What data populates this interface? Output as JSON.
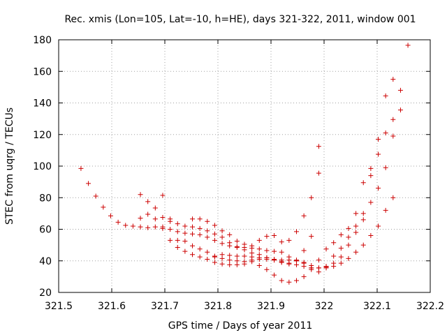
{
  "chart_data": {
    "type": "scatter",
    "title": "Rec. xmis (Lon=105, Lat=-10, h=HE), days 321-322, 2011, window 001",
    "xlabel": "GPS time / Days of year 2011",
    "ylabel": "STEC from uqrg / TECUs",
    "xlim": [
      321.5,
      322.2
    ],
    "ylim": [
      20,
      180
    ],
    "xticks": [
      "321.5",
      "321.6",
      "321.7",
      "321.8",
      "321.9",
      "322",
      "322.1",
      "322.2"
    ],
    "yticks": [
      "20",
      "40",
      "60",
      "80",
      "100",
      "120",
      "140",
      "160",
      "180"
    ],
    "grid": true,
    "marker": "plus",
    "color": "#cc0000",
    "series": [
      {
        "x": [
          321.542,
          321.556,
          321.57,
          321.584,
          321.598,
          321.612,
          321.626,
          321.64,
          321.654,
          321.668,
          321.682,
          321.696,
          321.71,
          321.724,
          321.738,
          321.752,
          321.766,
          321.78,
          321.794,
          321.808,
          321.822,
          321.836,
          321.85,
          321.864,
          321.878,
          321.892,
          321.906,
          321.92,
          321.934,
          321.948,
          321.962,
          321.976,
          321.99,
          322.004,
          322.018,
          322.032,
          322.046,
          322.06,
          322.074,
          322.088,
          322.102,
          322.116,
          322.13,
          322.144
        ],
        "y": [
          98.5,
          89,
          81,
          74,
          68.5,
          64.5,
          62.5,
          62,
          61.5,
          61,
          61.5,
          60.5,
          60,
          58.5,
          57.5,
          57,
          56.5,
          55,
          53,
          51,
          49.5,
          48.5,
          48.5,
          48,
          47.5,
          46.5,
          46,
          45.5,
          42.5,
          40.5,
          38.5,
          35.5,
          33,
          36.5,
          43,
          48,
          55,
          62,
          70,
          77,
          86,
          99,
          119,
          148
        ]
      },
      {
        "x": [
          321.654,
          321.668,
          321.682,
          321.696,
          321.71,
          321.724,
          321.738,
          321.752,
          321.766,
          321.78,
          321.794,
          321.808,
          321.822,
          321.836,
          321.85,
          321.864,
          321.878,
          321.892,
          321.906,
          321.92,
          321.934,
          321.948,
          321.962,
          321.976,
          321.99,
          322.004,
          322.018,
          322.032,
          322.046,
          322.06,
          322.074,
          322.088,
          322.102,
          322.116,
          322.13
        ],
        "y": [
          82,
          77.5,
          73.5,
          67.5,
          65,
          63.5,
          62,
          61.5,
          60.5,
          59,
          57,
          55,
          51.5,
          49,
          47,
          45,
          44,
          42,
          40.5,
          39.5,
          38.5,
          37.5,
          36.5,
          35.5,
          35.5,
          35.5,
          36.5,
          38.5,
          41.5,
          45.5,
          50,
          56,
          62,
          72,
          80
        ]
      },
      {
        "x": [
          321.654,
          321.668,
          321.682,
          321.696,
          321.71,
          321.724,
          321.738,
          321.752,
          321.766,
          321.78,
          321.794,
          321.808,
          321.822,
          321.836,
          321.85,
          321.864,
          321.878,
          321.892,
          321.906,
          321.92,
          321.934,
          321.948,
          321.962,
          321.976,
          321.99,
          322.004,
          322.018,
          322.032,
          322.046,
          322.06,
          322.074,
          322.088,
          322.102,
          322.116,
          322.13,
          322.144,
          322.158
        ],
        "y": [
          67,
          69.5,
          66.5,
          81.5,
          66.5,
          53,
          52.5,
          49.5,
          47.5,
          45.5,
          42.5,
          41.5,
          40.5,
          40,
          39.5,
          40.5,
          41,
          41,
          41,
          40.5,
          40.5,
          40,
          39,
          37,
          35.5,
          36,
          38.5,
          42.5,
          50,
          58,
          66,
          94,
          107.5,
          121,
          129.5,
          135.5,
          176.5
        ]
      },
      {
        "x": [
          321.696,
          321.71,
          321.724,
          321.738,
          321.752,
          321.766,
          321.78,
          321.794,
          321.808,
          321.822,
          321.836,
          321.85,
          321.864,
          321.878,
          321.892,
          321.906,
          321.92,
          321.934,
          321.948,
          321.962,
          321.976,
          321.99,
          322.004,
          322.018,
          322.032,
          322.046,
          322.06,
          322.074,
          322.088,
          322.102,
          322.116,
          322.13
        ],
        "y": [
          61.5,
          53,
          48.5,
          46,
          44,
          42.5,
          41,
          39,
          38,
          37.5,
          37.5,
          38,
          39.5,
          37,
          34.5,
          31,
          27.5,
          26.5,
          27.5,
          30,
          34.5,
          40.5,
          47.5,
          51.5,
          56.5,
          60.5,
          70,
          89.5,
          98.5,
          117,
          144.5,
          155
        ]
      },
      {
        "x": [
          321.752,
          321.766,
          321.78,
          321.794,
          321.808,
          321.822,
          321.836,
          321.85,
          321.864,
          321.878,
          321.892,
          321.906,
          321.92,
          321.934,
          321.948,
          321.962,
          321.976,
          321.99
        ],
        "y": [
          66.5,
          66.5,
          65,
          62.5,
          59,
          56.5,
          52.5,
          50.5,
          49.5,
          53,
          55.5,
          56,
          52,
          53,
          58.5,
          68.5,
          80,
          95.5
        ]
      },
      {
        "x": [
          321.794,
          321.808,
          321.822,
          321.836,
          321.85,
          321.864,
          321.878,
          321.892,
          321.906,
          321.92,
          321.934,
          321.948,
          321.962,
          321.976,
          321.99
        ],
        "y": [
          43,
          44,
          43.5,
          43,
          43,
          42.5,
          42,
          42,
          40.5,
          39,
          38,
          40,
          46.5,
          55.5,
          112.5
        ]
      }
    ]
  }
}
